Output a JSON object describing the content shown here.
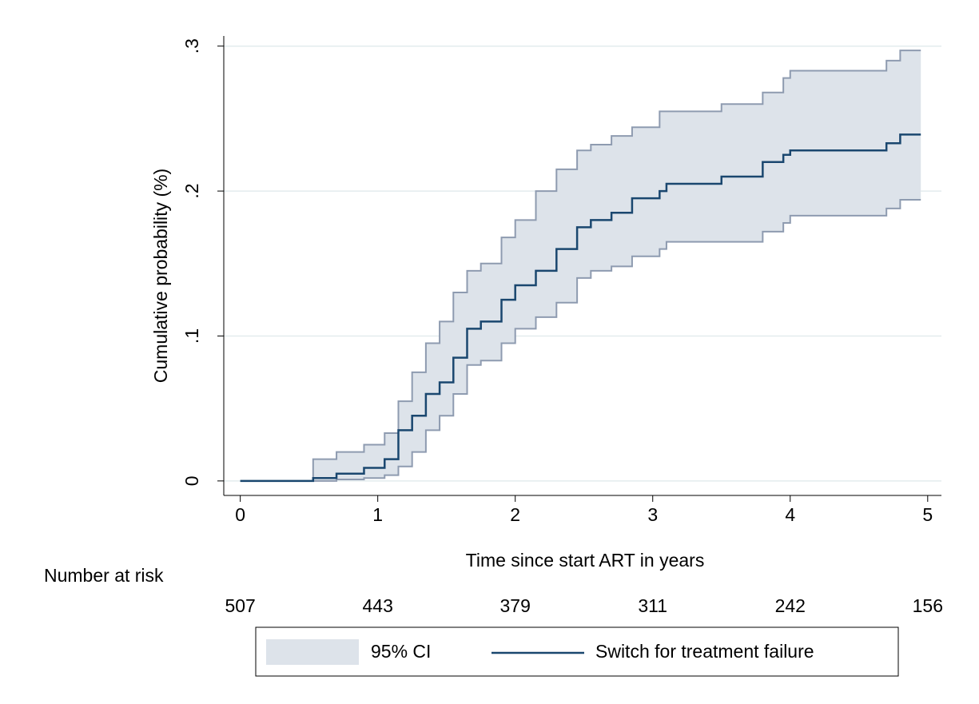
{
  "chart_data": {
    "type": "step-ci",
    "y_label": "Cumulative probability  (%)",
    "x_label": "Time since start ART in years",
    "xlim": [
      -0.12,
      5.1
    ],
    "ylim": [
      -0.01,
      0.307
    ],
    "xticks": [
      0,
      1,
      2,
      3,
      4,
      5
    ],
    "yticks": [
      0,
      {
        "value": 0.1,
        "label": ".1"
      },
      {
        "value": 0.2,
        "label": ".2"
      },
      {
        "value": 0.3,
        "label": ".3"
      }
    ],
    "grid": true,
    "x": [
      0,
      0.53,
      0.53,
      0.7,
      0.7,
      0.9,
      0.9,
      1.05,
      1.05,
      1.15,
      1.15,
      1.25,
      1.25,
      1.35,
      1.35,
      1.45,
      1.45,
      1.55,
      1.55,
      1.65,
      1.65,
      1.75,
      1.75,
      1.9,
      1.9,
      2.0,
      2.0,
      2.15,
      2.15,
      2.3,
      2.3,
      2.45,
      2.45,
      2.55,
      2.55,
      2.7,
      2.7,
      2.85,
      2.85,
      3.05,
      3.05,
      3.1,
      3.1,
      3.5,
      3.5,
      3.8,
      3.8,
      3.95,
      3.95,
      4.0,
      4.0,
      4.7,
      4.7,
      4.8,
      4.8,
      4.95
    ],
    "band": {
      "name": "95% CI",
      "color": "#dde3ea",
      "edge_color": "#8e9bb0",
      "lower": [
        0,
        0,
        0,
        0,
        0.001,
        0.001,
        0.002,
        0.002,
        0.004,
        0.004,
        0.01,
        0.01,
        0.02,
        0.02,
        0.035,
        0.035,
        0.045,
        0.045,
        0.06,
        0.06,
        0.08,
        0.08,
        0.083,
        0.083,
        0.095,
        0.095,
        0.105,
        0.105,
        0.113,
        0.113,
        0.123,
        0.123,
        0.14,
        0.14,
        0.145,
        0.145,
        0.148,
        0.148,
        0.155,
        0.155,
        0.16,
        0.16,
        0.165,
        0.165,
        0.165,
        0.165,
        0.172,
        0.172,
        0.178,
        0.178,
        0.183,
        0.183,
        0.188,
        0.188,
        0.194,
        0.194
      ],
      "upper": [
        0,
        0,
        0.015,
        0.015,
        0.02,
        0.02,
        0.025,
        0.025,
        0.033,
        0.033,
        0.055,
        0.055,
        0.075,
        0.075,
        0.095,
        0.095,
        0.11,
        0.11,
        0.13,
        0.13,
        0.145,
        0.145,
        0.15,
        0.15,
        0.168,
        0.168,
        0.18,
        0.18,
        0.2,
        0.2,
        0.215,
        0.215,
        0.228,
        0.228,
        0.232,
        0.232,
        0.238,
        0.238,
        0.244,
        0.244,
        0.255,
        0.255,
        0.255,
        0.255,
        0.26,
        0.26,
        0.268,
        0.268,
        0.278,
        0.278,
        0.283,
        0.283,
        0.29,
        0.29,
        0.297,
        0.297
      ]
    },
    "series": [
      {
        "name": "Switch for treatment failure",
        "color": "#1a476f",
        "values": [
          0,
          0,
          0.002,
          0.002,
          0.005,
          0.005,
          0.009,
          0.009,
          0.015,
          0.015,
          0.035,
          0.035,
          0.045,
          0.045,
          0.06,
          0.06,
          0.068,
          0.068,
          0.085,
          0.085,
          0.105,
          0.105,
          0.11,
          0.11,
          0.125,
          0.125,
          0.135,
          0.135,
          0.145,
          0.145,
          0.16,
          0.16,
          0.175,
          0.175,
          0.18,
          0.18,
          0.185,
          0.185,
          0.195,
          0.195,
          0.2,
          0.2,
          0.205,
          0.205,
          0.21,
          0.21,
          0.22,
          0.22,
          0.225,
          0.225,
          0.228,
          0.228,
          0.233,
          0.233,
          0.239,
          0.239
        ]
      }
    ],
    "risk_table": {
      "label": "Number at risk",
      "x": [
        0,
        1,
        2,
        3,
        4,
        5
      ],
      "values": [
        507,
        443,
        379,
        311,
        242,
        156
      ]
    }
  }
}
